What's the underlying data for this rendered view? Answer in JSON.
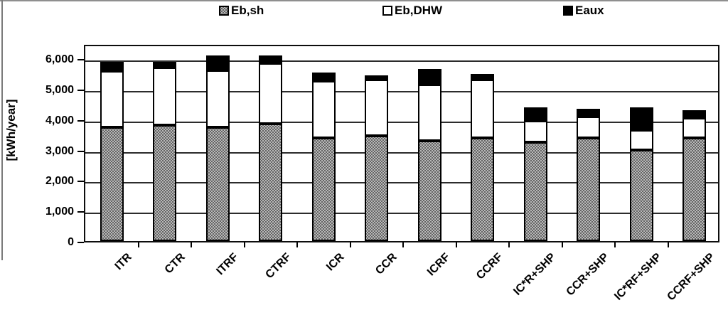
{
  "legend": {
    "items": [
      {
        "label": "Eb,sh",
        "swatch": "dotted-gray",
        "x": 308
      },
      {
        "label": "Eb,DHW",
        "swatch": "white",
        "x": 538
      },
      {
        "label": "Eaux",
        "swatch": "black",
        "x": 792
      }
    ]
  },
  "y_axis": {
    "title": "[kWh/year]",
    "tick_labels": [
      "0",
      "1,000",
      "2,000",
      "3,000",
      "4,000",
      "5,000",
      "6,000"
    ],
    "tick_values": [
      0,
      1000,
      2000,
      3000,
      4000,
      5000,
      6000
    ]
  },
  "chart_data": {
    "type": "bar",
    "stacked": true,
    "title": "",
    "xlabel": "",
    "ylabel": "[kWh/year]",
    "ylim": [
      0,
      6500
    ],
    "ytick_interval": 1000,
    "grid": true,
    "legend_position": "top",
    "categories": [
      "ITR",
      "CTR",
      "ITRF",
      "CTRF",
      "ICR",
      "CCR",
      "ICRF",
      "CCRF",
      "IC*R+SHP",
      "CCR+SHP",
      "IC*RF+SHP",
      "CCRF+SHP"
    ],
    "series": [
      {
        "name": "Eb,sh",
        "fill": "dotted-gray",
        "color": "#b9b9b9",
        "values": [
          3750,
          3800,
          3750,
          3850,
          3400,
          3450,
          3300,
          3400,
          3250,
          3400,
          3000,
          3400
        ]
      },
      {
        "name": "Eb,DHW",
        "fill": "white",
        "color": "#ffffff",
        "values": [
          1850,
          1900,
          1850,
          2000,
          1850,
          1850,
          1850,
          1900,
          700,
          700,
          650,
          650
        ]
      },
      {
        "name": "Eaux",
        "fill": "black",
        "color": "#000000",
        "values": [
          300,
          200,
          500,
          250,
          300,
          150,
          500,
          200,
          450,
          250,
          750,
          250
        ]
      }
    ],
    "totals": [
      5900,
      5900,
      6100,
      6100,
      5550,
      5450,
      5650,
      5500,
      4400,
      4350,
      4400,
      4300
    ]
  },
  "colors": {
    "grid": "#2c2c2c",
    "frame": "#0d0d0d",
    "segment_border": "#000000",
    "background": "#ffffff"
  }
}
